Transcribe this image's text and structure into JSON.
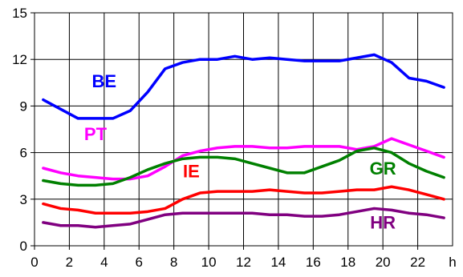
{
  "chart_data": {
    "type": "line",
    "title": "",
    "xlabel": "",
    "ylabel": "",
    "x_unit_label": "h",
    "xlim": [
      0,
      24
    ],
    "ylim": [
      0,
      15
    ],
    "x_ticks": [
      0,
      2,
      4,
      6,
      8,
      10,
      12,
      14,
      16,
      18,
      20,
      22
    ],
    "y_ticks": [
      0,
      3,
      6,
      9,
      12,
      15
    ],
    "grid": true,
    "legend": "inline labels",
    "x": [
      0.5,
      1.5,
      2.5,
      3.5,
      4.5,
      5.5,
      6.5,
      7.5,
      8.5,
      9.5,
      10.5,
      11.5,
      12.5,
      13.5,
      14.5,
      15.5,
      16.5,
      17.5,
      18.5,
      19.5,
      20.5,
      21.5,
      22.5,
      23.5
    ],
    "series": [
      {
        "name": "BE",
        "color": "#0000ff",
        "values": [
          9.4,
          8.8,
          8.2,
          8.2,
          8.2,
          8.7,
          9.9,
          11.4,
          11.8,
          12.0,
          12.0,
          12.2,
          12.0,
          12.1,
          12.0,
          11.9,
          11.9,
          11.9,
          12.1,
          12.3,
          11.8,
          10.8,
          10.6,
          10.2
        ]
      },
      {
        "name": "PT",
        "color": "#ff00ff",
        "values": [
          5.0,
          4.7,
          4.5,
          4.4,
          4.3,
          4.3,
          4.5,
          5.1,
          5.8,
          6.1,
          6.3,
          6.4,
          6.4,
          6.3,
          6.3,
          6.4,
          6.4,
          6.4,
          6.2,
          6.4,
          6.9,
          6.5,
          6.1,
          5.7
        ]
      },
      {
        "name": "GR",
        "color": "#008000",
        "values": [
          4.2,
          4.0,
          3.9,
          3.9,
          4.0,
          4.4,
          4.9,
          5.3,
          5.6,
          5.7,
          5.7,
          5.6,
          5.3,
          5.0,
          4.7,
          4.7,
          5.1,
          5.5,
          6.1,
          6.3,
          6.0,
          5.3,
          4.8,
          4.4
        ]
      },
      {
        "name": "IE",
        "color": "#ff0000",
        "values": [
          2.7,
          2.4,
          2.3,
          2.1,
          2.1,
          2.1,
          2.2,
          2.4,
          3.0,
          3.4,
          3.5,
          3.5,
          3.5,
          3.6,
          3.5,
          3.4,
          3.4,
          3.5,
          3.6,
          3.6,
          3.8,
          3.6,
          3.3,
          3.0
        ]
      },
      {
        "name": "HR",
        "color": "#800080",
        "values": [
          1.5,
          1.3,
          1.3,
          1.2,
          1.3,
          1.4,
          1.7,
          2.0,
          2.1,
          2.1,
          2.1,
          2.1,
          2.1,
          2.0,
          2.0,
          1.9,
          1.9,
          2.0,
          2.2,
          2.4,
          2.3,
          2.1,
          2.0,
          1.8
        ]
      }
    ],
    "annotations": [
      {
        "text": "BE",
        "color": "#0000ff",
        "x": 4.0,
        "y": 10.2
      },
      {
        "text": "PT",
        "color": "#ff00ff",
        "x": 3.5,
        "y": 6.8
      },
      {
        "text": "IE",
        "color": "#ff0000",
        "x": 9.0,
        "y": 4.4
      },
      {
        "text": "GR",
        "color": "#008000",
        "x": 20.0,
        "y": 4.6
      },
      {
        "text": "HR",
        "color": "#800080",
        "x": 20.0,
        "y": 1.1
      }
    ]
  }
}
